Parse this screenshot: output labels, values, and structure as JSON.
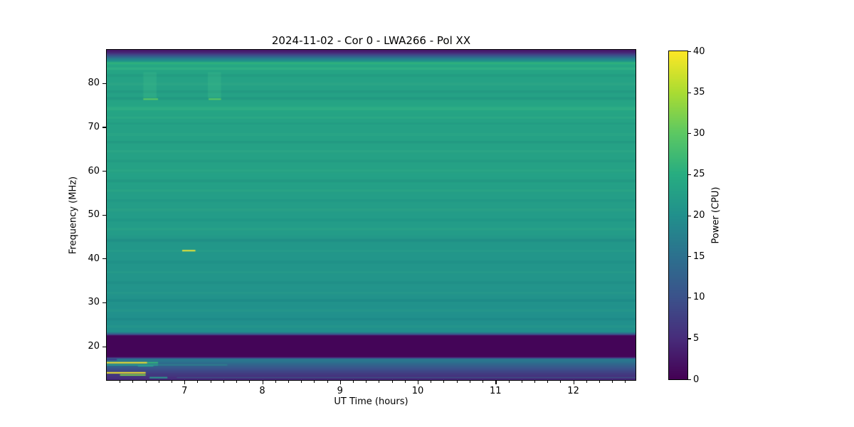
{
  "figure": {
    "title": "2024-11-02 - Cor 0 - LWA266 - Pol XX",
    "xlabel": "UT Time (hours)",
    "ylabel": "Frequency (MHz)",
    "colorbar_label": "Power (CPU)",
    "background_color": "#ffffff",
    "spine_color": "#000000"
  },
  "chart_data": {
    "type": "heatmap",
    "title": "2024-11-02 - Cor 0 - LWA266 - Pol XX",
    "xlabel": "UT Time (hours)",
    "ylabel": "Frequency (MHz)",
    "colormap": "viridis",
    "x_range_hours": [
      6.0,
      12.8
    ],
    "y_range_mhz": [
      12.3,
      87.6
    ],
    "x_ticks": [
      7,
      8,
      9,
      10,
      11,
      12
    ],
    "x_minor_tick_interval_hours": 0.166667,
    "y_ticks": [
      20,
      30,
      40,
      50,
      60,
      70,
      80
    ],
    "color_scale": {
      "label": "Power (CPU)",
      "min": 0,
      "max": 40,
      "ticks": [
        0,
        5,
        10,
        15,
        20,
        25,
        30,
        35,
        40
      ]
    },
    "viridis_stops": [
      [
        0.0,
        "#440154"
      ],
      [
        0.125,
        "#472d7b"
      ],
      [
        0.25,
        "#3b528b"
      ],
      [
        0.375,
        "#2c718e"
      ],
      [
        0.5,
        "#21908c"
      ],
      [
        0.625,
        "#27ad81"
      ],
      [
        0.75,
        "#5cc863"
      ],
      [
        0.875,
        "#aadc32"
      ],
      [
        1.0,
        "#fde725"
      ]
    ],
    "background_profile_power_vs_mhz": [
      [
        87.6,
        2.5
      ],
      [
        87.0,
        4
      ],
      [
        86.3,
        10
      ],
      [
        85.7,
        16
      ],
      [
        85.0,
        21
      ],
      [
        84.6,
        26
      ],
      [
        84.1,
        24
      ],
      [
        83.0,
        23.5
      ],
      [
        80.0,
        23
      ],
      [
        77.0,
        23
      ],
      [
        74.2,
        23.8
      ],
      [
        72.0,
        23.2
      ],
      [
        70.0,
        23
      ],
      [
        66.0,
        23
      ],
      [
        60.0,
        23
      ],
      [
        55.0,
        22.5
      ],
      [
        50.0,
        22
      ],
      [
        45.5,
        22
      ],
      [
        44.8,
        21.3
      ],
      [
        40.0,
        21
      ],
      [
        35.0,
        20.8
      ],
      [
        30.0,
        20.3
      ],
      [
        26.0,
        20
      ],
      [
        23.3,
        20
      ],
      [
        22.7,
        10
      ],
      [
        22.4,
        0.5
      ],
      [
        17.6,
        0.5
      ],
      [
        17.3,
        8
      ],
      [
        17.05,
        16.5
      ],
      [
        16.4,
        15
      ],
      [
        15.5,
        12
      ],
      [
        14.5,
        9
      ],
      [
        13.5,
        6.5
      ],
      [
        12.3,
        4.5
      ]
    ],
    "row_stripes": [
      {
        "f0": 83.0,
        "f1": 83.6,
        "tone": "light",
        "a": 0.2
      },
      {
        "f0": 81.5,
        "f1": 82.0,
        "tone": "dark",
        "a": 0.08
      },
      {
        "f0": 79.5,
        "f1": 80.1,
        "tone": "light",
        "a": 0.1
      },
      {
        "f0": 77.8,
        "f1": 78.3,
        "tone": "dark",
        "a": 0.08
      },
      {
        "f0": 76.2,
        "f1": 76.8,
        "tone": "dark",
        "a": 0.1
      },
      {
        "f0": 73.8,
        "f1": 74.6,
        "tone": "light",
        "a": 0.16
      },
      {
        "f0": 71.9,
        "f1": 72.4,
        "tone": "light",
        "a": 0.12
      },
      {
        "f0": 70.6,
        "f1": 71.0,
        "tone": "dark",
        "a": 0.07
      },
      {
        "f0": 68.0,
        "f1": 68.6,
        "tone": "light",
        "a": 0.09
      },
      {
        "f0": 66.3,
        "f1": 66.8,
        "tone": "dark",
        "a": 0.08
      },
      {
        "f0": 64.2,
        "f1": 64.8,
        "tone": "light",
        "a": 0.1
      },
      {
        "f0": 62.0,
        "f1": 62.5,
        "tone": "dark",
        "a": 0.07
      },
      {
        "f0": 59.8,
        "f1": 60.4,
        "tone": "light",
        "a": 0.09
      },
      {
        "f0": 57.4,
        "f1": 58.0,
        "tone": "dark",
        "a": 0.08
      },
      {
        "f0": 55.2,
        "f1": 55.8,
        "tone": "light",
        "a": 0.09
      },
      {
        "f0": 53.0,
        "f1": 53.5,
        "tone": "dark",
        "a": 0.07
      },
      {
        "f0": 50.8,
        "f1": 51.4,
        "tone": "light",
        "a": 0.09
      },
      {
        "f0": 48.5,
        "f1": 49.1,
        "tone": "dark",
        "a": 0.07
      },
      {
        "f0": 46.4,
        "f1": 47.0,
        "tone": "light",
        "a": 0.09
      },
      {
        "f0": 43.9,
        "f1": 44.4,
        "tone": "dark",
        "a": 0.1
      },
      {
        "f0": 41.5,
        "f1": 42.0,
        "tone": "light",
        "a": 0.07
      },
      {
        "f0": 38.9,
        "f1": 39.5,
        "tone": "dark",
        "a": 0.07
      },
      {
        "f0": 36.6,
        "f1": 37.2,
        "tone": "light",
        "a": 0.07
      },
      {
        "f0": 34.2,
        "f1": 34.8,
        "tone": "dark",
        "a": 0.07
      },
      {
        "f0": 31.9,
        "f1": 32.5,
        "tone": "light",
        "a": 0.07
      },
      {
        "f0": 30.2,
        "f1": 30.7,
        "tone": "dark",
        "a": 0.09
      },
      {
        "f0": 27.9,
        "f1": 28.5,
        "tone": "light",
        "a": 0.07
      },
      {
        "f0": 25.9,
        "f1": 26.4,
        "tone": "dark",
        "a": 0.09
      },
      {
        "f0": 24.2,
        "f1": 24.8,
        "tone": "light",
        "a": 0.07
      }
    ],
    "features": [
      {
        "type": "vband",
        "t0": 6.47,
        "t1": 6.64,
        "f0": 76.6,
        "f1": 82.5,
        "color": "rgba(84,212,140,0.18)"
      },
      {
        "type": "vband",
        "t0": 7.3,
        "t1": 7.47,
        "f0": 76.6,
        "f1": 82.5,
        "color": "rgba(84,212,140,0.18)"
      },
      {
        "type": "hline",
        "f": 76.35,
        "t0": 6.47,
        "t1": 6.66,
        "color": "#5ec962",
        "w": 2
      },
      {
        "type": "hline",
        "f": 76.35,
        "t0": 7.31,
        "t1": 7.47,
        "color": "#5ec962",
        "w": 2
      },
      {
        "type": "hline",
        "f": 41.8,
        "t0": 6.97,
        "t1": 7.14,
        "color": "#e8e438",
        "w": 2
      },
      {
        "type": "hline",
        "f": 16.95,
        "t0": 6.0,
        "t1": 6.13,
        "color": "#3c3e8c",
        "w": 2
      },
      {
        "type": "hline",
        "f": 16.25,
        "t0": 6.0,
        "t1": 6.52,
        "color": "#f2e52c",
        "w": 2
      },
      {
        "type": "hline",
        "f": 16.25,
        "t0": 6.52,
        "t1": 6.66,
        "color": "#35b779",
        "w": 2
      },
      {
        "type": "hline",
        "f": 15.75,
        "t0": 6.0,
        "t1": 6.66,
        "color": "#2a9d8f",
        "w": 2
      },
      {
        "type": "hline",
        "f": 15.75,
        "t0": 6.66,
        "t1": 7.55,
        "color": "rgba(42,157,143,0.45)",
        "w": 2
      },
      {
        "type": "hline",
        "f": 15.3,
        "t0": 6.0,
        "t1": 6.2,
        "color": "#33628d",
        "w": 2
      },
      {
        "type": "hline",
        "f": 15.5,
        "t0": 6.4,
        "t1": 6.6,
        "color": "#2a9d8f",
        "w": 1.5
      },
      {
        "type": "hline",
        "f": 13.95,
        "t0": 6.0,
        "t1": 6.5,
        "color": "#f2e52c",
        "w": 2
      },
      {
        "type": "hline",
        "f": 13.45,
        "t0": 6.17,
        "t1": 6.5,
        "color": "#7ad151",
        "w": 2
      },
      {
        "type": "hline",
        "f": 12.85,
        "t0": 6.55,
        "t1": 6.78,
        "color": "#2a9d8f",
        "w": 2
      },
      {
        "type": "hline",
        "f": 12.85,
        "t0": 6.9,
        "t1": 12.8,
        "color": "rgba(45,130,142,0.5)",
        "w": 1
      }
    ]
  }
}
